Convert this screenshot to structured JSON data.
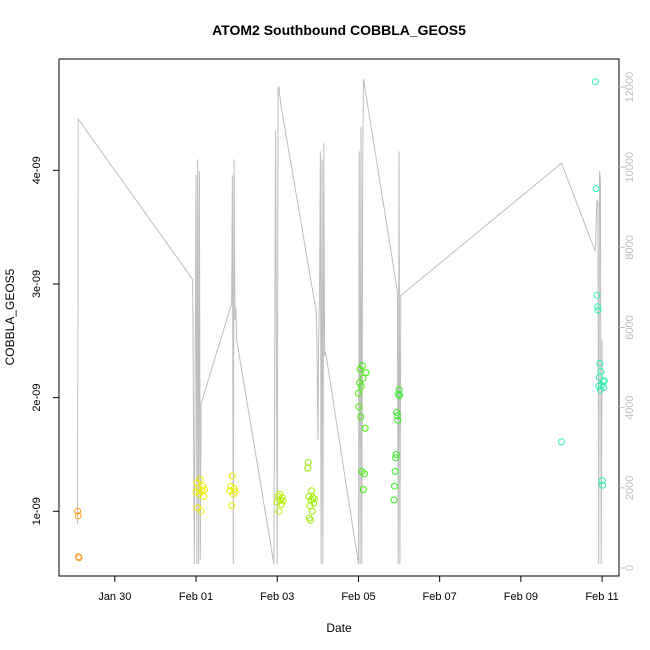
{
  "chart_data": {
    "type": "scatter",
    "title": "ATOM2 Southbound COBBLA_GEOS5",
    "xlabel": "Date",
    "ylabel": "COBBLA_GEOS5",
    "x_ticks": [
      "Jan 30",
      "Feb 01",
      "Feb 03",
      "Feb 05",
      "Feb 07",
      "Feb 09",
      "Feb 11"
    ],
    "y_ticks": [
      "1e-09",
      "2e-09",
      "3e-09",
      "4e-09"
    ],
    "y2_ticks": [
      "0",
      "2000",
      "4000",
      "6000",
      "8000",
      "10000",
      "12000"
    ],
    "ylim": [
      4.3e-10,
      4.98e-09
    ],
    "y2lim": [
      -200,
      12700
    ],
    "xlim": [
      "2016-01-28T15:00",
      "2016-02-11T10:00"
    ],
    "grid": false,
    "series": [
      {
        "kind": "points",
        "points": [
          [
            "2016-01-29T02:00",
            1e-09,
            "#ff9a1a"
          ],
          [
            "2016-01-29T02:20",
            9.6e-10,
            "#ff9a1a"
          ],
          [
            "2016-01-29T02:30",
            6e-10,
            "#ff9a1a"
          ],
          [
            "2016-01-29T02:50",
            5.9e-10,
            "#ff9a1a"
          ],
          [
            "2016-02-01T00:00",
            1.17e-09,
            "#f0f000"
          ],
          [
            "2016-02-01T00:30",
            1.25e-09,
            "#f0f000"
          ],
          [
            "2016-02-01T01:00",
            1.03e-09,
            "#f0f000"
          ],
          [
            "2016-02-01T01:30",
            1.2e-09,
            "#f0f000"
          ],
          [
            "2016-02-01T02:00",
            1.15e-09,
            "#f0f000"
          ],
          [
            "2016-02-01T02:30",
            1.28e-09,
            "#f0f000"
          ],
          [
            "2016-02-01T03:00",
            1e-09,
            "#f0f000"
          ],
          [
            "2016-02-01T03:30",
            1.18e-09,
            "#f0f000"
          ],
          [
            "2016-02-01T04:00",
            1.22e-09,
            "#f0f000"
          ],
          [
            "2016-02-01T04:30",
            1.13e-09,
            "#f0f000"
          ],
          [
            "2016-02-01T05:00",
            1.19e-09,
            "#f0f000"
          ],
          [
            "2016-02-01T20:00",
            1.18e-09,
            "#eaf000"
          ],
          [
            "2016-02-01T20:30",
            1.22e-09,
            "#eaf000"
          ],
          [
            "2016-02-01T21:00",
            1.05e-09,
            "#eaf000"
          ],
          [
            "2016-02-01T21:30",
            1.31e-09,
            "#eaf000"
          ],
          [
            "2016-02-01T22:00",
            1.15e-09,
            "#eaf000"
          ],
          [
            "2016-02-01T22:30",
            1.2e-09,
            "#eaf000"
          ],
          [
            "2016-02-01T23:00",
            1.17e-09,
            "#eaf000"
          ],
          [
            "2016-02-03T00:00",
            1.08e-09,
            "#b8f000"
          ],
          [
            "2016-02-03T00:30",
            1.13e-09,
            "#b8f000"
          ],
          [
            "2016-02-03T01:00",
            1e-09,
            "#b8f000"
          ],
          [
            "2016-02-03T01:30",
            1.15e-09,
            "#b8f000"
          ],
          [
            "2016-02-03T02:00",
            1.1e-09,
            "#b8f000"
          ],
          [
            "2016-02-03T02:30",
            1.06e-09,
            "#b8f000"
          ],
          [
            "2016-02-03T03:00",
            1.12e-09,
            "#b8f000"
          ],
          [
            "2016-02-03T03:30",
            1.09e-09,
            "#b8f000"
          ],
          [
            "2016-02-03T18:00",
            1.38e-09,
            "#9cf000"
          ],
          [
            "2016-02-03T18:20",
            1.43e-09,
            "#9cf000"
          ],
          [
            "2016-02-03T18:40",
            1.13e-09,
            "#9cf000"
          ],
          [
            "2016-02-03T19:00",
            9.4e-10,
            "#9cf000"
          ],
          [
            "2016-02-03T19:20",
            1.05e-09,
            "#9cf000"
          ],
          [
            "2016-02-03T19:40",
            9.2e-10,
            "#9cf000"
          ],
          [
            "2016-02-03T20:00",
            1.1e-09,
            "#9cf000"
          ],
          [
            "2016-02-03T20:20",
            1.18e-09,
            "#9cf000"
          ],
          [
            "2016-02-03T20:40",
            1e-09,
            "#9cf000"
          ],
          [
            "2016-02-03T21:00",
            1.12e-09,
            "#9cf000"
          ],
          [
            "2016-02-03T21:30",
            1.07e-09,
            "#9cf000"
          ],
          [
            "2016-02-03T22:00",
            1.11e-09,
            "#9cf000"
          ],
          [
            "2016-02-05T00:00",
            2.04e-09,
            "#40f000"
          ],
          [
            "2016-02-05T00:20",
            1.92e-09,
            "#40f000"
          ],
          [
            "2016-02-05T00:40",
            2.13e-09,
            "#40f000"
          ],
          [
            "2016-02-05T01:00",
            2.25e-09,
            "#40f000"
          ],
          [
            "2016-02-05T01:20",
            1.83e-09,
            "#40f000"
          ],
          [
            "2016-02-05T01:40",
            2.1e-09,
            "#40f000"
          ],
          [
            "2016-02-05T02:00",
            1.35e-09,
            "#40f000"
          ],
          [
            "2016-02-05T02:20",
            2.28e-09,
            "#40f000"
          ],
          [
            "2016-02-05T02:40",
            2.17e-09,
            "#40f000"
          ],
          [
            "2016-02-05T03:00",
            1.19e-09,
            "#40f000"
          ],
          [
            "2016-02-05T03:30",
            1.33e-09,
            "#40f000"
          ],
          [
            "2016-02-05T04:00",
            1.73e-09,
            "#40f000"
          ],
          [
            "2016-02-05T04:30",
            2.22e-09,
            "#40f000"
          ],
          [
            "2016-02-05T21:00",
            1.1e-09,
            "#30f020"
          ],
          [
            "2016-02-05T21:20",
            1.22e-09,
            "#30f020"
          ],
          [
            "2016-02-05T21:40",
            1.35e-09,
            "#30f020"
          ],
          [
            "2016-02-05T22:00",
            1.47e-09,
            "#30f020"
          ],
          [
            "2016-02-05T22:20",
            1.5e-09,
            "#30f020"
          ],
          [
            "2016-02-05T22:40",
            1.87e-09,
            "#30f020"
          ],
          [
            "2016-02-05T23:00",
            1.84e-09,
            "#30f020"
          ],
          [
            "2016-02-05T23:20",
            1.8e-09,
            "#30f020"
          ],
          [
            "2016-02-05T23:40",
            2.03e-09,
            "#30f020"
          ],
          [
            "2016-02-06T00:00",
            2.07e-09,
            "#30f020"
          ],
          [
            "2016-02-06T00:20",
            2.02e-09,
            "#30f020"
          ],
          [
            "2016-02-10T00:00",
            1.61e-09,
            "#30f0a0"
          ],
          [
            "2016-02-10T20:00",
            4.78e-09,
            "#30f0b0"
          ],
          [
            "2016-02-10T20:30",
            3.84e-09,
            "#30f0b0"
          ],
          [
            "2016-02-10T21:00",
            2.9e-09,
            "#30f0b0"
          ],
          [
            "2016-02-10T21:20",
            2.8e-09,
            "#30f0b0"
          ],
          [
            "2016-02-10T21:40",
            2.77e-09,
            "#30f0b0"
          ],
          [
            "2016-02-10T22:00",
            2.1e-09,
            "#30f0b0"
          ],
          [
            "2016-02-10T22:20",
            2.18e-09,
            "#30f0b0"
          ],
          [
            "2016-02-10T22:40",
            2.3e-09,
            "#30f0b0"
          ],
          [
            "2016-02-10T23:00",
            2.07e-09,
            "#30f0b0"
          ],
          [
            "2016-02-10T23:20",
            2.23e-09,
            "#30f0b0"
          ],
          [
            "2016-02-10T23:40",
            2.11e-09,
            "#30f0b0"
          ],
          [
            "2016-02-11T00:00",
            1.27e-09,
            "#30f0b0"
          ],
          [
            "2016-02-11T00:20",
            1.23e-09,
            "#30f0b0"
          ],
          [
            "2016-02-11T00:40",
            2.14e-09,
            "#30f0b0"
          ],
          [
            "2016-02-11T01:00",
            2.09e-09,
            "#30f0b0"
          ],
          [
            "2016-02-11T01:20",
            2.15e-09,
            "#30f0b0"
          ]
        ]
      },
      {
        "kind": "line",
        "axis": "right",
        "color": "#bdbdbd",
        "points": [
          [
            "2016-01-29T02:00",
            1100
          ],
          [
            "2016-01-29T02:20",
            11200
          ],
          [
            "2016-01-31T22:00",
            7200
          ],
          [
            "2016-01-31T23:00",
            100
          ],
          [
            "2016-02-01T00:00",
            9800
          ],
          [
            "2016-02-01T00:30",
            100
          ],
          [
            "2016-02-01T01:00",
            10200
          ],
          [
            "2016-02-01T01:30",
            100
          ],
          [
            "2016-02-01T02:00",
            9900
          ],
          [
            "2016-02-01T02:30",
            200
          ],
          [
            "2016-02-01T03:00",
            4100
          ],
          [
            "2016-02-01T21:00",
            6600
          ],
          [
            "2016-02-01T21:30",
            9800
          ],
          [
            "2016-02-01T22:00",
            100
          ],
          [
            "2016-02-01T22:30",
            10200
          ],
          [
            "2016-02-01T23:00",
            6200
          ],
          [
            "2016-02-01T23:30",
            6500
          ],
          [
            "2016-02-02T00:00",
            5700
          ],
          [
            "2016-02-02T22:00",
            100
          ],
          [
            "2016-02-02T23:00",
            10900
          ],
          [
            "2016-02-03T00:00",
            100
          ],
          [
            "2016-02-03T00:30",
            12000
          ],
          [
            "2016-02-03T01:00",
            12000
          ],
          [
            "2016-02-03T02:00",
            11600
          ],
          [
            "2016-02-03T23:00",
            6400
          ],
          [
            "2016-02-03T23:30",
            5500
          ],
          [
            "2016-02-04T00:00",
            3200
          ],
          [
            "2016-02-04T00:30",
            5800
          ],
          [
            "2016-02-04T01:00",
            6800
          ],
          [
            "2016-02-04T01:30",
            10400
          ],
          [
            "2016-02-04T02:00",
            100
          ],
          [
            "2016-02-04T02:30",
            10200
          ],
          [
            "2016-02-04T03:00",
            100
          ],
          [
            "2016-02-04T03:30",
            10600
          ],
          [
            "2016-02-04T04:00",
            5300
          ],
          [
            "2016-02-04T04:30",
            5400
          ],
          [
            "2016-02-05T00:00",
            100
          ],
          [
            "2016-02-05T00:30",
            10400
          ],
          [
            "2016-02-05T01:00",
            100
          ],
          [
            "2016-02-05T01:30",
            11000
          ],
          [
            "2016-02-05T02:00",
            100
          ],
          [
            "2016-02-05T02:30",
            10100
          ],
          [
            "2016-02-05T03:00",
            12200
          ],
          [
            "2016-02-05T23:00",
            6900
          ],
          [
            "2016-02-05T23:30",
            100
          ],
          [
            "2016-02-06T00:00",
            10400
          ],
          [
            "2016-02-06T00:30",
            100
          ],
          [
            "2016-02-06T01:00",
            6800
          ],
          [
            "2016-02-10T00:00",
            10100
          ],
          [
            "2016-02-10T20:00",
            7900
          ],
          [
            "2016-02-10T21:00",
            9200
          ],
          [
            "2016-02-10T21:30",
            9100
          ],
          [
            "2016-02-10T22:00",
            100
          ],
          [
            "2016-02-10T22:30",
            9900
          ],
          [
            "2016-02-10T23:00",
            9700
          ],
          [
            "2016-02-10T23:30",
            100
          ],
          [
            "2016-02-11T00:00",
            5700
          ]
        ]
      }
    ]
  }
}
